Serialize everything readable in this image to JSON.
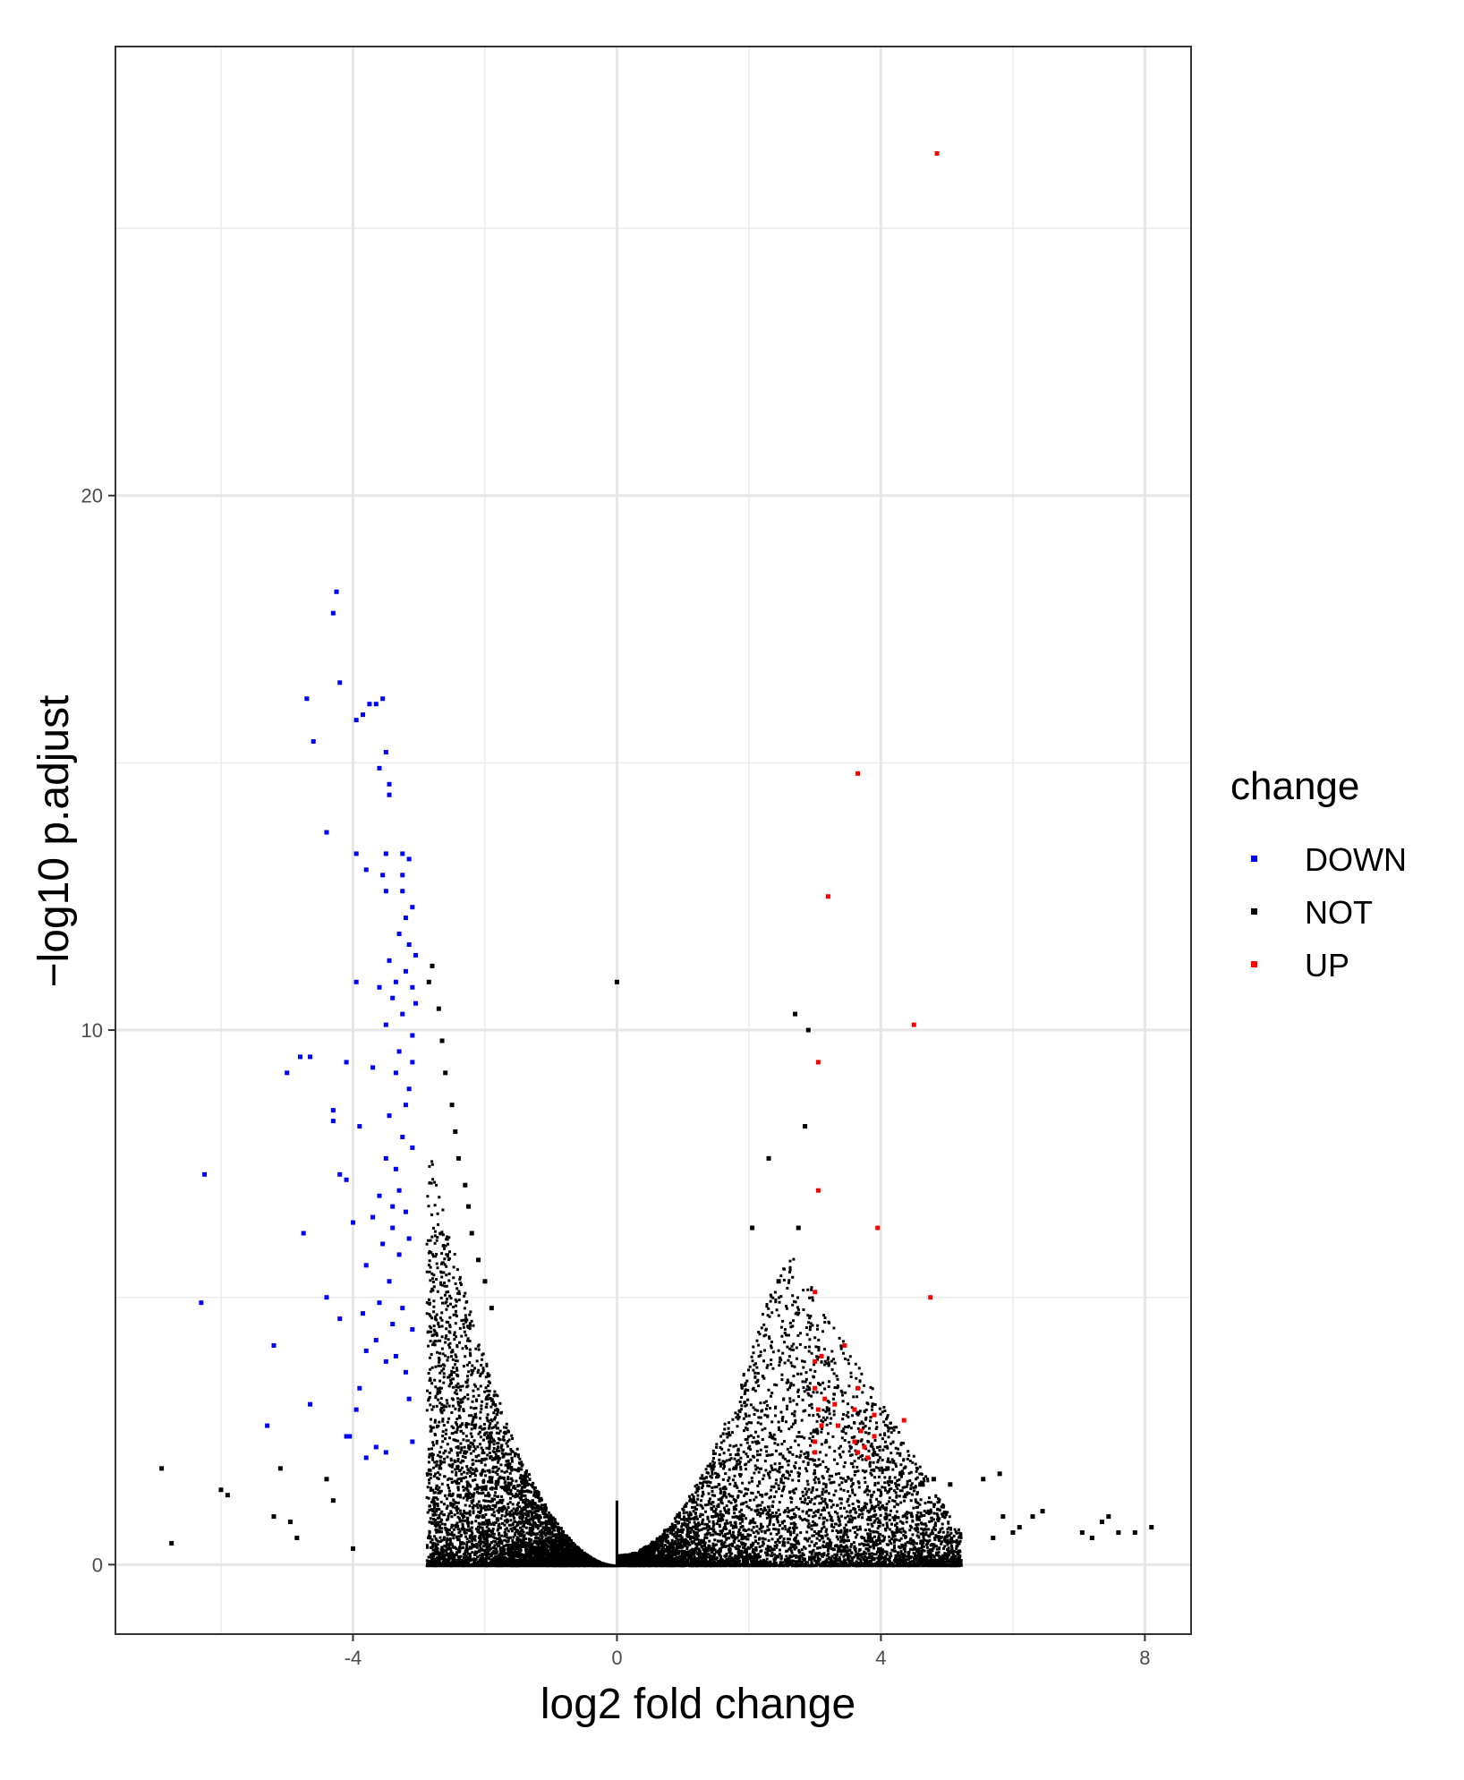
{
  "chart_data": {
    "type": "scatter",
    "title": "",
    "xlabel": "log2 fold change",
    "ylabel": "−log10 p.adjust",
    "xlim": [
      -7.6,
      8.7
    ],
    "ylim": [
      -1.3,
      28.4
    ],
    "x_ticks": [
      -4,
      0,
      4,
      8
    ],
    "x_tick_labels": [
      "-4",
      "0",
      "4",
      "8"
    ],
    "y_ticks": [
      0,
      10,
      20
    ],
    "y_tick_labels": [
      "0",
      "10",
      "20"
    ],
    "grid": true,
    "legend": {
      "title": "change",
      "position": "right",
      "entries": [
        {
          "label": "DOWN",
          "color": "#0000ff"
        },
        {
          "label": "NOT",
          "color": "#000000"
        },
        {
          "label": "UP",
          "color": "#ff0000"
        }
      ]
    },
    "series": [
      {
        "name": "DOWN",
        "color": "#0000ff",
        "points": [
          [
            -4.25,
            18.2
          ],
          [
            -4.3,
            17.8
          ],
          [
            -4.2,
            16.5
          ],
          [
            -4.7,
            16.2
          ],
          [
            -3.75,
            16.1
          ],
          [
            -3.65,
            16.1
          ],
          [
            -3.55,
            16.2
          ],
          [
            -3.85,
            15.9
          ],
          [
            -3.95,
            15.8
          ],
          [
            -4.6,
            15.4
          ],
          [
            -3.5,
            15.2
          ],
          [
            -3.6,
            14.9
          ],
          [
            -3.45,
            14.6
          ],
          [
            -3.45,
            14.4
          ],
          [
            -4.4,
            13.7
          ],
          [
            -3.95,
            13.3
          ],
          [
            -3.5,
            13.3
          ],
          [
            -3.25,
            13.3
          ],
          [
            -3.15,
            13.2
          ],
          [
            -3.8,
            13.0
          ],
          [
            -3.55,
            12.9
          ],
          [
            -3.25,
            12.9
          ],
          [
            -3.5,
            12.6
          ],
          [
            -3.25,
            12.6
          ],
          [
            -3.1,
            12.3
          ],
          [
            -3.2,
            12.1
          ],
          [
            -3.3,
            11.8
          ],
          [
            -3.15,
            11.6
          ],
          [
            -3.05,
            11.4
          ],
          [
            -3.45,
            11.3
          ],
          [
            -3.2,
            11.1
          ],
          [
            -3.35,
            10.9
          ],
          [
            -3.1,
            10.8
          ],
          [
            -3.95,
            10.9
          ],
          [
            -3.6,
            10.8
          ],
          [
            -3.4,
            10.6
          ],
          [
            -3.05,
            10.5
          ],
          [
            -3.25,
            10.3
          ],
          [
            -3.5,
            10.1
          ],
          [
            -3.1,
            9.9
          ],
          [
            -3.3,
            9.6
          ],
          [
            -3.1,
            9.4
          ],
          [
            -4.65,
            9.5
          ],
          [
            -4.8,
            9.5
          ],
          [
            -4.1,
            9.4
          ],
          [
            -3.7,
            9.3
          ],
          [
            -3.35,
            9.2
          ],
          [
            -3.15,
            8.9
          ],
          [
            -5.0,
            9.2
          ],
          [
            -3.2,
            8.6
          ],
          [
            -4.3,
            8.5
          ],
          [
            -3.45,
            8.4
          ],
          [
            -4.3,
            8.3
          ],
          [
            -3.9,
            8.2
          ],
          [
            -3.25,
            8.0
          ],
          [
            -3.1,
            7.8
          ],
          [
            -3.5,
            7.6
          ],
          [
            -3.35,
            7.4
          ],
          [
            -4.2,
            7.3
          ],
          [
            -6.25,
            7.3
          ],
          [
            -4.1,
            7.2
          ],
          [
            -3.3,
            7.0
          ],
          [
            -3.6,
            6.9
          ],
          [
            -3.4,
            6.7
          ],
          [
            -3.2,
            6.6
          ],
          [
            -3.7,
            6.5
          ],
          [
            -4.75,
            6.2
          ],
          [
            -3.4,
            6.3
          ],
          [
            -3.15,
            6.1
          ],
          [
            -4.0,
            6.4
          ],
          [
            -3.55,
            6.0
          ],
          [
            -3.3,
            5.8
          ],
          [
            -3.8,
            5.6
          ],
          [
            -3.45,
            5.3
          ],
          [
            -6.3,
            4.9
          ],
          [
            -4.4,
            5.0
          ],
          [
            -3.6,
            4.9
          ],
          [
            -3.25,
            4.8
          ],
          [
            -3.85,
            4.7
          ],
          [
            -4.2,
            4.6
          ],
          [
            -3.4,
            4.5
          ],
          [
            -3.1,
            4.4
          ],
          [
            -3.65,
            4.2
          ],
          [
            -5.2,
            4.1
          ],
          [
            -3.8,
            4.0
          ],
          [
            -3.35,
            3.9
          ],
          [
            -3.5,
            3.8
          ],
          [
            -3.2,
            3.6
          ],
          [
            -3.9,
            3.3
          ],
          [
            -3.15,
            3.1
          ],
          [
            -4.65,
            3.0
          ],
          [
            -3.95,
            2.9
          ],
          [
            -5.3,
            2.6
          ],
          [
            -4.05,
            2.4
          ],
          [
            -3.65,
            2.2
          ],
          [
            -3.5,
            2.1
          ],
          [
            -4.1,
            2.4
          ],
          [
            -3.8,
            2.0
          ],
          [
            -3.1,
            2.3
          ]
        ]
      },
      {
        "name": "UP",
        "color": "#ff0000",
        "points": [
          [
            4.85,
            26.4
          ],
          [
            3.65,
            14.8
          ],
          [
            3.2,
            12.5
          ],
          [
            4.5,
            10.1
          ],
          [
            3.05,
            9.4
          ],
          [
            3.05,
            7.0
          ],
          [
            3.95,
            6.3
          ],
          [
            4.75,
            5.0
          ],
          [
            3.0,
            5.1
          ],
          [
            3.45,
            4.1
          ],
          [
            3.1,
            3.9
          ],
          [
            3.0,
            3.8
          ],
          [
            3.65,
            3.3
          ],
          [
            3.0,
            3.3
          ],
          [
            3.15,
            3.1
          ],
          [
            3.3,
            3.0
          ],
          [
            3.05,
            2.9
          ],
          [
            3.6,
            2.9
          ],
          [
            3.9,
            2.8
          ],
          [
            4.35,
            2.7
          ],
          [
            3.1,
            2.6
          ],
          [
            3.35,
            2.6
          ],
          [
            3.7,
            2.5
          ],
          [
            3.9,
            2.4
          ],
          [
            3.6,
            2.3
          ],
          [
            3.0,
            2.3
          ],
          [
            3.75,
            2.2
          ],
          [
            3.65,
            2.1
          ],
          [
            3.8,
            2.0
          ],
          [
            3.0,
            2.1
          ]
        ]
      },
      {
        "name": "NOT",
        "color": "#000000",
        "points": [
          [
            0.0,
            10.9
          ],
          [
            2.7,
            10.3
          ],
          [
            2.9,
            10.0
          ],
          [
            2.85,
            8.2
          ],
          [
            2.3,
            7.6
          ],
          [
            2.05,
            6.3
          ],
          [
            2.75,
            6.3
          ],
          [
            2.45,
            5.3
          ],
          [
            -6.9,
            1.8
          ],
          [
            -6.75,
            0.4
          ],
          [
            -6.0,
            1.4
          ],
          [
            -5.9,
            1.3
          ],
          [
            -5.1,
            1.8
          ],
          [
            -5.2,
            0.9
          ],
          [
            -4.95,
            0.8
          ],
          [
            -4.85,
            0.5
          ],
          [
            -4.4,
            1.6
          ],
          [
            -4.3,
            1.2
          ],
          [
            -4.0,
            0.3
          ],
          [
            -2.8,
            11.2
          ],
          [
            -2.85,
            10.9
          ],
          [
            -2.7,
            10.4
          ],
          [
            -2.65,
            9.8
          ],
          [
            -2.6,
            9.2
          ],
          [
            -2.5,
            8.6
          ],
          [
            -2.45,
            8.1
          ],
          [
            -2.4,
            7.6
          ],
          [
            -2.3,
            7.1
          ],
          [
            -2.25,
            6.7
          ],
          [
            -2.2,
            6.2
          ],
          [
            -2.1,
            5.7
          ],
          [
            -2.0,
            5.3
          ],
          [
            -1.9,
            4.8
          ],
          [
            3.2,
            2.9
          ],
          [
            3.0,
            2.5
          ],
          [
            4.1,
            1.8
          ],
          [
            4.3,
            1.7
          ],
          [
            4.6,
            1.5
          ],
          [
            4.8,
            1.6
          ],
          [
            5.05,
            1.5
          ],
          [
            5.55,
            1.6
          ],
          [
            5.8,
            1.7
          ],
          [
            5.85,
            0.9
          ],
          [
            6.1,
            0.7
          ],
          [
            6.3,
            0.9
          ],
          [
            6.45,
            1.0
          ],
          [
            6.0,
            0.6
          ],
          [
            5.7,
            0.5
          ],
          [
            7.05,
            0.6
          ],
          [
            7.2,
            0.5
          ],
          [
            7.35,
            0.8
          ],
          [
            7.45,
            0.9
          ],
          [
            7.6,
            0.6
          ],
          [
            7.85,
            0.6
          ],
          [
            8.1,
            0.7
          ]
        ]
      }
    ]
  }
}
